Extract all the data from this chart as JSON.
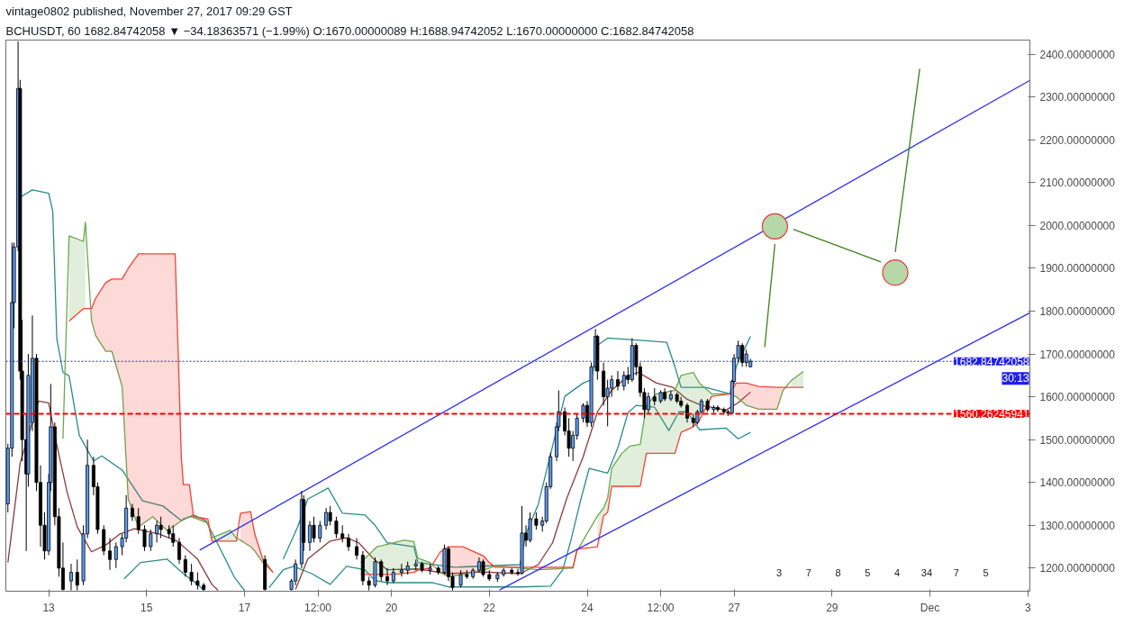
{
  "chart_data": {
    "type": "candlestick",
    "title": "vintage0802 published, November 27, 2017 09:29 GST",
    "subtitle": "BCHUSDT, 60  1682.84742058 ▼ −34.18363571 (−1.99%)  O:1670.00000089  H:1688.94742052  L:1670.00000000  C:1682.84742058",
    "xlim": [
      "2017-11-12T03:00",
      "2017-12-03T01:00"
    ],
    "ylim": [
      1146,
      2433
    ],
    "xticks": [
      {
        "value": "2017-11-13",
        "label": "13"
      },
      {
        "value": "2017-11-15",
        "label": "15"
      },
      {
        "value": "2017-11-17",
        "label": "17"
      },
      {
        "value": "2017-11-18T12:00",
        "label": "12:00"
      },
      {
        "value": "2017-11-20",
        "label": "20"
      },
      {
        "value": "2017-11-22",
        "label": "22"
      },
      {
        "value": "2017-11-24",
        "label": "24"
      },
      {
        "value": "2017-11-25T12:00",
        "label": "12:00"
      },
      {
        "value": "2017-11-27",
        "label": "27"
      },
      {
        "value": "2017-11-29",
        "label": "29"
      },
      {
        "value": "2017-12-01",
        "label": "Dec"
      },
      {
        "value": "2017-12-03",
        "label": "3"
      }
    ],
    "yticks": [
      {
        "value": 1200,
        "label": "1200.00000000"
      },
      {
        "value": 1300,
        "label": "1300.00000000"
      },
      {
        "value": 1400,
        "label": "1400.00000000"
      },
      {
        "value": 1500,
        "label": "1500.00000000"
      },
      {
        "value": 1600,
        "label": "1600.00000000"
      },
      {
        "value": 1700,
        "label": "1700.00000000"
      },
      {
        "value": 1800,
        "label": "1800.00000000"
      },
      {
        "value": 1900,
        "label": "1900.00000000"
      },
      {
        "value": 2000,
        "label": "2000.00000000"
      },
      {
        "value": 2100,
        "label": "2100.00000000"
      },
      {
        "value": 2200,
        "label": "2200.00000000"
      },
      {
        "value": 2300,
        "label": "2300.00000000"
      },
      {
        "value": 2400,
        "label": "2400.00000000"
      }
    ],
    "x": [
      "2017-11-12T04:00",
      "2017-11-12T06:00",
      "2017-11-12T07:00",
      "2017-11-12T09:00",
      "2017-11-12T10:00",
      "2017-11-12T11:00",
      "2017-11-12T13:00",
      "2017-11-12T14:00",
      "2017-11-12T16:00",
      "2017-11-12T18:00",
      "2017-11-12T20:00",
      "2017-11-12T22:00",
      "2017-11-13T00:00",
      "2017-11-13T01:00",
      "2017-11-13T03:00",
      "2017-11-13T05:00",
      "2017-11-13T07:00",
      "2017-11-13T11:00",
      "2017-11-13T14:00",
      "2017-11-13T17:00",
      "2017-11-13T19:00",
      "2017-11-13T22:00",
      "2017-11-14T00:00",
      "2017-11-14T03:00",
      "2017-11-14T06:00",
      "2017-11-14T09:00",
      "2017-11-14T12:00",
      "2017-11-14T14:00",
      "2017-11-14T17:00",
      "2017-11-14T20:00",
      "2017-11-14T23:00",
      "2017-11-15T02:00",
      "2017-11-15T05:00",
      "2017-11-15T07:00",
      "2017-11-15T11:00",
      "2017-11-15T13:00",
      "2017-11-15T16:00",
      "2017-11-15T19:00",
      "2017-11-15T22:00",
      "2017-11-16T01:00",
      "2017-11-16T04:00",
      "2017-11-17T10:00",
      "2017-11-17T23:00",
      "2017-11-18T01:00",
      "2017-11-18T04:00",
      "2017-11-18T05:00",
      "2017-11-18T08:00",
      "2017-11-18T10:00",
      "2017-11-18T13:00",
      "2017-11-18T16:00",
      "2017-11-18T18:00",
      "2017-11-18T21:00",
      "2017-11-19T00:00",
      "2017-11-19T03:00",
      "2017-11-19T07:00",
      "2017-11-19T10:00",
      "2017-11-19T13:00",
      "2017-11-19T16:00",
      "2017-11-19T19:00",
      "2017-11-19T22:00",
      "2017-11-20T01:00",
      "2017-11-20T05:00",
      "2017-11-20T08:00",
      "2017-11-20T12:00",
      "2017-11-20T15:00",
      "2017-11-20T19:00",
      "2017-11-20T23:00",
      "2017-11-21T02:00",
      "2017-11-21T04:00",
      "2017-11-21T06:00",
      "2017-11-21T10:00",
      "2017-11-21T13:00",
      "2017-11-21T16:00",
      "2017-11-21T19:00",
      "2017-11-21T21:00",
      "2017-11-22T00:00",
      "2017-11-22T04:00",
      "2017-11-22T07:00",
      "2017-11-22T11:00",
      "2017-11-22T14:00",
      "2017-11-22T16:00",
      "2017-11-22T18:00",
      "2017-11-22T20:00",
      "2017-11-22T23:00",
      "2017-11-23T02:00",
      "2017-11-23T04:00",
      "2017-11-23T06:00",
      "2017-11-23T09:00",
      "2017-11-23T10:00",
      "2017-11-23T13:00",
      "2017-11-23T15:00",
      "2017-11-23T17:00",
      "2017-11-23T19:00",
      "2017-11-23T22:00",
      "2017-11-24T00:00",
      "2017-11-24T02:00",
      "2017-11-24T04:00",
      "2017-11-24T05:00",
      "2017-11-24T08:00",
      "2017-11-24T10:00",
      "2017-11-24T12:00",
      "2017-11-24T15:00",
      "2017-11-24T18:00",
      "2017-11-24T20:00",
      "2017-11-24T22:00",
      "2017-11-25T00:00",
      "2017-11-25T02:00",
      "2017-11-25T04:00",
      "2017-11-25T06:00",
      "2017-11-25T09:00",
      "2017-11-25T12:00",
      "2017-11-25T14:00",
      "2017-11-25T17:00",
      "2017-11-25T20:00",
      "2017-11-25T22:00",
      "2017-11-26T01:00",
      "2017-11-26T04:00",
      "2017-11-26T06:00",
      "2017-11-26T08:00",
      "2017-11-26T11:00",
      "2017-11-26T14:00",
      "2017-11-26T16:00",
      "2017-11-26T19:00",
      "2017-11-26T21:00",
      "2017-11-26T23:00",
      "2017-11-27T00:00",
      "2017-11-27T02:00",
      "2017-11-27T04:00",
      "2017-11-27T06:00",
      "2017-11-27T08:00"
    ],
    "ohlc": [
      [
        1350,
        1490,
        1330,
        1480
      ],
      [
        1480,
        1960,
        1460,
        1820
      ],
      [
        1820,
        1960,
        1760,
        1950
      ],
      [
        1950,
        2430,
        1940,
        2320
      ],
      [
        2320,
        2340,
        1640,
        1660
      ],
      [
        1660,
        1780,
        1450,
        1500
      ],
      [
        1500,
        1560,
        1240,
        1420
      ],
      [
        1420,
        1700,
        1390,
        1650
      ],
      [
        1540,
        1790,
        1520,
        1690
      ],
      [
        1690,
        1700,
        1380,
        1400
      ],
      [
        1400,
        1440,
        1250,
        1300
      ],
      [
        1300,
        1330,
        1220,
        1240
      ],
      [
        1240,
        1420,
        1230,
        1400
      ],
      [
        1400,
        1630,
        1380,
        1530
      ],
      [
        1530,
        1540,
        1300,
        1320
      ],
      [
        1320,
        1340,
        1180,
        1200
      ],
      [
        1200,
        1260,
        1148,
        1150
      ],
      [
        1170,
        1210,
        1148,
        1190
      ],
      [
        1190,
        1220,
        1148,
        1160
      ],
      [
        1170,
        1300,
        1160,
        1280
      ],
      [
        1280,
        1500,
        1270,
        1440
      ],
      [
        1440,
        1460,
        1370,
        1390
      ],
      [
        1390,
        1400,
        1280,
        1290
      ],
      [
        1290,
        1300,
        1230,
        1240
      ],
      [
        1240,
        1270,
        1196,
        1220
      ],
      [
        1220,
        1260,
        1200,
        1250
      ],
      [
        1250,
        1280,
        1230,
        1270
      ],
      [
        1270,
        1370,
        1260,
        1340
      ],
      [
        1340,
        1350,
        1310,
        1320
      ],
      [
        1320,
        1340,
        1280,
        1290
      ],
      [
        1290,
        1300,
        1240,
        1250
      ],
      [
        1250,
        1290,
        1240,
        1280
      ],
      [
        1280,
        1310,
        1260,
        1300
      ],
      [
        1300,
        1320,
        1270,
        1290
      ],
      [
        1290,
        1300,
        1270,
        1280
      ],
      [
        1280,
        1300,
        1250,
        1260
      ],
      [
        1260,
        1270,
        1210,
        1220
      ],
      [
        1220,
        1230,
        1180,
        1190
      ],
      [
        1190,
        1210,
        1160,
        1170
      ],
      [
        1170,
        1190,
        1150,
        1160
      ],
      [
        1160,
        1165,
        1148,
        1150
      ],
      [
        1220,
        1230,
        1148,
        1150
      ],
      [
        1150,
        1175,
        1148,
        1170
      ],
      [
        1170,
        1220,
        1160,
        1210
      ],
      [
        1210,
        1380,
        1200,
        1360
      ],
      [
        1360,
        1370,
        1240,
        1260
      ],
      [
        1260,
        1310,
        1240,
        1300
      ],
      [
        1300,
        1320,
        1260,
        1270
      ],
      [
        1270,
        1310,
        1260,
        1300
      ],
      [
        1300,
        1340,
        1290,
        1330
      ],
      [
        1330,
        1345,
        1300,
        1310
      ],
      [
        1310,
        1320,
        1270,
        1280
      ],
      [
        1280,
        1300,
        1260,
        1270
      ],
      [
        1270,
        1280,
        1240,
        1250
      ],
      [
        1250,
        1270,
        1220,
        1230
      ],
      [
        1230,
        1240,
        1160,
        1170
      ],
      [
        1170,
        1180,
        1148,
        1160
      ],
      [
        1160,
        1225,
        1155,
        1215
      ],
      [
        1215,
        1220,
        1170,
        1180
      ],
      [
        1180,
        1200,
        1160,
        1170
      ],
      [
        1170,
        1200,
        1165,
        1190
      ],
      [
        1190,
        1210,
        1180,
        1195
      ],
      [
        1195,
        1215,
        1185,
        1205
      ],
      [
        1205,
        1220,
        1195,
        1210
      ],
      [
        1210,
        1215,
        1190,
        1195
      ],
      [
        1195,
        1210,
        1185,
        1200
      ],
      [
        1200,
        1205,
        1185,
        1190
      ],
      [
        1190,
        1255,
        1185,
        1245
      ],
      [
        1245,
        1250,
        1170,
        1180
      ],
      [
        1180,
        1190,
        1148,
        1155
      ],
      [
        1160,
        1195,
        1155,
        1185
      ],
      [
        1185,
        1195,
        1175,
        1180
      ],
      [
        1180,
        1200,
        1175,
        1195
      ],
      [
        1195,
        1225,
        1190,
        1215
      ],
      [
        1215,
        1220,
        1180,
        1185
      ],
      [
        1185,
        1195,
        1170,
        1175
      ],
      [
        1175,
        1190,
        1168,
        1185
      ],
      [
        1185,
        1200,
        1180,
        1195
      ],
      [
        1195,
        1200,
        1185,
        1190
      ],
      [
        1190,
        1198,
        1182,
        1188
      ],
      [
        1188,
        1345,
        1185,
        1282
      ],
      [
        1282,
        1300,
        1250,
        1265
      ],
      [
        1265,
        1330,
        1260,
        1315
      ],
      [
        1315,
        1330,
        1290,
        1300
      ],
      [
        1300,
        1320,
        1285,
        1310
      ],
      [
        1310,
        1400,
        1305,
        1390
      ],
      [
        1390,
        1470,
        1385,
        1460
      ],
      [
        1460,
        1540,
        1450,
        1530
      ],
      [
        1530,
        1615,
        1520,
        1565
      ],
      [
        1565,
        1575,
        1510,
        1520
      ],
      [
        1520,
        1550,
        1460,
        1480
      ],
      [
        1480,
        1520,
        1450,
        1510
      ],
      [
        1510,
        1560,
        1500,
        1550
      ],
      [
        1550,
        1585,
        1540,
        1580
      ],
      [
        1580,
        1590,
        1530,
        1540
      ],
      [
        1540,
        1680,
        1530,
        1670
      ],
      [
        1670,
        1758,
        1660,
        1741
      ],
      [
        1741,
        1745,
        1640,
        1660
      ],
      [
        1660,
        1680,
        1580,
        1600
      ],
      [
        1600,
        1640,
        1531,
        1620
      ],
      [
        1620,
        1650,
        1600,
        1640
      ],
      [
        1640,
        1660,
        1615,
        1625
      ],
      [
        1625,
        1660,
        1615,
        1650
      ],
      [
        1650,
        1670,
        1630,
        1640
      ],
      [
        1640,
        1737,
        1635,
        1720
      ],
      [
        1720,
        1725,
        1650,
        1670
      ],
      [
        1670,
        1680,
        1600,
        1610
      ],
      [
        1610,
        1620,
        1550,
        1570
      ],
      [
        1570,
        1610,
        1560,
        1600
      ],
      [
        1600,
        1620,
        1580,
        1590
      ],
      [
        1590,
        1615,
        1585,
        1610
      ],
      [
        1610,
        1620,
        1590,
        1595
      ],
      [
        1595,
        1615,
        1590,
        1605
      ],
      [
        1605,
        1610,
        1585,
        1590
      ],
      [
        1590,
        1600,
        1575,
        1580
      ],
      [
        1580,
        1585,
        1540,
        1550
      ],
      [
        1550,
        1560,
        1530,
        1540
      ],
      [
        1540,
        1570,
        1535,
        1565
      ],
      [
        1565,
        1595,
        1560,
        1590
      ],
      [
        1590,
        1595,
        1565,
        1570
      ],
      [
        1570,
        1580,
        1563,
        1575
      ],
      [
        1575,
        1580,
        1565,
        1570
      ],
      [
        1570,
        1575,
        1560,
        1565
      ],
      [
        1565,
        1570,
        1555,
        1562
      ],
      [
        1562,
        1640,
        1560,
        1636
      ],
      [
        1636,
        1700,
        1630,
        1690
      ],
      [
        1690,
        1731,
        1680,
        1720
      ],
      [
        1720,
        1725,
        1670,
        1680
      ],
      [
        1680,
        1710,
        1670,
        1700
      ],
      [
        1670,
        1689,
        1670,
        1683
      ]
    ],
    "colors": [
      "#5b9cf6",
      "#5b9cf6",
      "#5b9cf6",
      "#5b9cf6",
      "#000000",
      "#000000",
      "#000000",
      "#5b9cf6",
      "#5b9cf6",
      "#000000",
      "#000000",
      "#000000",
      "#5b9cf6",
      "#5b9cf6",
      "#000000",
      "#000000",
      "#000000",
      "#5b9cf6",
      "#000000",
      "#5b9cf6",
      "#5b9cf6",
      "#000000",
      "#000000",
      "#000000",
      "#000000",
      "#5b9cf6",
      "#5b9cf6",
      "#5b9cf6",
      "#000000",
      "#000000",
      "#000000",
      "#5b9cf6",
      "#5b9cf6",
      "#000000",
      "#000000",
      "#000000",
      "#000000",
      "#000000",
      "#000000",
      "#000000",
      "#000000",
      "#000000",
      "#5b9cf6",
      "#5b9cf6",
      "#5b9cf6",
      "#000000",
      "#5b9cf6",
      "#000000",
      "#5b9cf6",
      "#5b9cf6",
      "#000000",
      "#000000",
      "#000000",
      "#000000",
      "#000000",
      "#000000",
      "#000000",
      "#5b9cf6",
      "#000000",
      "#000000",
      "#5b9cf6",
      "#5b9cf6",
      "#5b9cf6",
      "#5b9cf6",
      "#000000",
      "#5b9cf6",
      "#000000",
      "#5b9cf6",
      "#000000",
      "#000000",
      "#5b9cf6",
      "#000000",
      "#5b9cf6",
      "#5b9cf6",
      "#000000",
      "#000000",
      "#5b9cf6",
      "#5b9cf6",
      "#000000",
      "#000000",
      "#5b9cf6",
      "#000000",
      "#5b9cf6",
      "#000000",
      "#5b9cf6",
      "#5b9cf6",
      "#5b9cf6",
      "#5b9cf6",
      "#5b9cf6",
      "#000000",
      "#000000",
      "#5b9cf6",
      "#5b9cf6",
      "#5b9cf6",
      "#000000",
      "#5b9cf6",
      "#5b9cf6",
      "#000000",
      "#000000",
      "#5b9cf6",
      "#5b9cf6",
      "#000000",
      "#5b9cf6",
      "#000000",
      "#5b9cf6",
      "#000000",
      "#000000",
      "#000000",
      "#5b9cf6",
      "#000000",
      "#5b9cf6",
      "#000000",
      "#5b9cf6",
      "#000000",
      "#000000",
      "#000000",
      "#000000",
      "#5b9cf6",
      "#5b9cf6",
      "#000000",
      "#5b9cf6",
      "#000000",
      "#000000",
      "#000000",
      "#5b9cf6",
      "#5b9cf6",
      "#5b9cf6",
      "#000000",
      "#5b9cf6",
      "#5b9cf6"
    ],
    "series": [
      {
        "type": "line",
        "color": "#2b8a8c",
        "x": [
          "2017-11-12T10:00",
          "2017-11-12T16:00",
          "2017-11-13T00:00",
          "2017-11-13T02:00",
          "2017-11-13T04:00",
          "2017-11-13T07:00",
          "2017-11-13T10:00",
          "2017-11-13T15:00",
          "2017-11-13T22:00",
          "2017-11-14T02:00",
          "2017-11-14T12:00",
          "2017-11-14T22:00",
          "2017-11-15T08:00",
          "2017-11-15T17:00",
          "2017-11-15T23:00",
          "2017-11-16T05:00",
          "2017-11-16T12:00",
          "2017-11-16T19:00",
          "2017-11-17T00:00",
          "2017-11-17T10:00",
          "2017-11-17T19:00",
          "2017-11-18T02:00",
          "2017-11-18T07:00",
          "2017-11-18T17:00",
          "2017-11-19T00:00",
          "2017-11-19T11:00",
          "2017-11-19T16:00",
          "2017-11-19T22:00",
          "2017-11-20T11:00",
          "2017-11-20T13:00",
          "2017-11-21T07:00",
          "2017-11-22T15:00",
          "2017-11-22T18:00",
          "2017-11-23T00:00",
          "2017-11-23T13:00",
          "2017-11-23T22:00",
          "2017-11-24T02:00",
          "2017-11-24T05:00",
          "2017-11-24T10:00",
          "2017-11-25T05:00",
          "2017-11-25T15:00",
          "2017-11-25T19:00",
          "2017-11-25T22:00",
          "2017-11-26T10:00",
          "2017-11-26T22:00",
          "2017-11-27T01:00",
          "2017-11-27T08:00"
        ],
        "values": [
          2066,
          2083,
          2075,
          2033,
          1735,
          1657,
          1649,
          1510,
          1450,
          1462,
          1429,
          1357,
          1345,
          1311,
          1324,
          1311,
          1246,
          1179,
          1148,
          null,
          1221,
          1296,
          1361,
          1387,
          1328,
          1324,
          1300,
          1259,
          1250,
          1213,
          1202,
          1208,
          1280,
          1349,
          1601,
          1632,
          1640,
          1720,
          1737,
          1731,
          1727,
          1670,
          1622,
          1622,
          1607,
          1670,
          1741
        ]
      },
      {
        "type": "line",
        "color": "#2b8a8c",
        "x": [
          "2017-11-14T13:00",
          "2017-11-14T21:00",
          "2017-11-15T10:00",
          "2017-11-15T18:00",
          "2017-11-16T01:00",
          "2017-11-16T04:00",
          "2017-11-17T00:00",
          "2017-11-17T12:00",
          "2017-11-17T19:00",
          "2017-11-18T00:00",
          "2017-11-18T09:00",
          "2017-11-18T18:00",
          "2017-11-19T02:00",
          "2017-11-19T11:00",
          "2017-11-19T16:00",
          "2017-11-19T22:00",
          "2017-11-20T20:00",
          "2017-11-21T04:00",
          "2017-11-22T15:00",
          "2017-11-23T06:00",
          "2017-11-23T12:00",
          "2017-11-23T16:00",
          "2017-11-23T21:00",
          "2017-11-24T01:00",
          "2017-11-24T10:00",
          "2017-11-24T15:00",
          "2017-11-24T20:00",
          "2017-11-25T00:00",
          "2017-11-25T09:00",
          "2017-11-25T16:00",
          "2017-11-25T21:00",
          "2017-11-26T01:00",
          "2017-11-26T07:00",
          "2017-11-26T20:00",
          "2017-11-27T02:00",
          "2017-11-27T08:00"
        ],
        "values": [
          1175,
          1213,
          1221,
          1187,
          1162,
          1148,
          null,
          1154,
          1196,
          1204,
          1187,
          1162,
          1204,
          1196,
          1171,
          1166,
          1166,
          1156,
          1156,
          1158,
          1196,
          1265,
          1363,
          1433,
          1422,
          1481,
          1563,
          1580,
          1576,
          1521,
          1565,
          1565,
          1523,
          1527,
          1502,
          1517
        ]
      },
      {
        "type": "line",
        "color": "#8b3a3a",
        "x": [
          "2017-11-12T04:00",
          "2017-11-12T10:00",
          "2017-11-12T19:00",
          "2017-11-13T00:00",
          "2017-11-13T04:00",
          "2017-11-13T09:00",
          "2017-11-13T14:00",
          "2017-11-13T21:00",
          "2017-11-14T04:00",
          "2017-11-14T11:00",
          "2017-11-14T18:00",
          "2017-11-15T06:00",
          "2017-11-15T15:00",
          "2017-11-16T01:00",
          "2017-11-16T08:00",
          "2017-11-16T11:00",
          "2017-11-17T06:00",
          "2017-11-18T01:00",
          "2017-11-18T07:00",
          "2017-11-18T18:00",
          "2017-11-19T02:00",
          "2017-11-19T08:00",
          "2017-11-19T15:00",
          "2017-11-19T22:00",
          "2017-11-20T13:00",
          "2017-11-21T04:00",
          "2017-11-21T21:00",
          "2017-11-22T15:00",
          "2017-11-23T00:00",
          "2017-11-23T07:00",
          "2017-11-23T14:00",
          "2017-11-23T22:00",
          "2017-11-24T05:00",
          "2017-11-24T12:00",
          "2017-11-24T20:00",
          "2017-11-25T01:00",
          "2017-11-25T10:00",
          "2017-11-25T18:00",
          "2017-11-26T01:00",
          "2017-11-26T08:00",
          "2017-11-26T20:00",
          "2017-11-27T02:00",
          "2017-11-27T08:00"
        ],
        "values": [
          1213,
          1445,
          1590,
          1586,
          1487,
          1378,
          1296,
          1238,
          1254,
          1280,
          1292,
          1280,
          1263,
          1221,
          1162,
          1148,
          null,
          1150,
          1221,
          1263,
          1271,
          1259,
          1223,
          1196,
          1198,
          1187,
          1191,
          1187,
          1208,
          1259,
          1363,
          1460,
          1565,
          1615,
          1649,
          1657,
          1632,
          1622,
          1594,
          1580,
          1569,
          1586,
          1611
        ]
      },
      {
        "type": "line",
        "color": "#6aa84f",
        "x": [
          "2017-11-13T07:00",
          "2017-11-13T10:00",
          "2017-11-13T17:00",
          "2017-11-13T18:00",
          "2017-11-13T21:00",
          "2017-11-13T23:00",
          "2017-11-14T04:00",
          "2017-11-14T07:00",
          "2017-11-14T12:00",
          "2017-11-14T15:00",
          "2017-11-14T20:00",
          "2017-11-15T03:00",
          "2017-11-15T10:00",
          "2017-11-15T14:00",
          "2017-11-15T17:00",
          "2017-11-15T18:00",
          "2017-11-15T21:00",
          "2017-11-15T23:00",
          "2017-11-16T06:00",
          "2017-11-16T08:00",
          "2017-11-16T17:00",
          "2017-11-16T20:00",
          "2017-11-16T22:00",
          "2017-11-17T03:00",
          "2017-11-17T05:00",
          "2017-11-17T09:00",
          "2017-11-17T14:00",
          "2017-11-17T20:00",
          "2017-11-19T09:00",
          "2017-11-19T17:00",
          "2017-11-20T01:00",
          "2017-11-20T06:00",
          "2017-11-20T11:00",
          "2017-11-20T13:00",
          "2017-11-20T19:00",
          "2017-11-21T00:00",
          "2017-11-21T04:00",
          "2017-11-21T11:00",
          "2017-11-21T21:00",
          "2017-11-22T00:00",
          "2017-11-22T03:00",
          "2017-11-23T00:00",
          "2017-11-23T17:00",
          "2017-11-23T19:00",
          "2017-11-24T05:00",
          "2017-11-24T08:00",
          "2017-11-24T10:00",
          "2017-11-24T12:00",
          "2017-11-24T17:00",
          "2017-11-24T21:00",
          "2017-11-25T02:00",
          "2017-11-25T05:00",
          "2017-11-25T10:00",
          "2017-11-25T19:00",
          "2017-11-25T22:00",
          "2017-11-26T04:00",
          "2017-11-26T07:00",
          "2017-11-26T13:00",
          "2017-11-26T22:00",
          "2017-11-27T01:00",
          "2017-11-27T06:00",
          "2017-11-27T12:00",
          "2017-11-27T21:00",
          "2017-11-28T00:00",
          "2017-11-28T04:00",
          "2017-11-28T10:00"
        ],
        "values": [
          1502,
          1976,
          1963,
          2008,
          1777,
          1743,
          1706,
          1706,
          1624,
          1361,
          1296,
          1320,
          1288,
          1300,
          1310,
          1315,
          1320,
          1318,
          1305,
          1271,
          1288,
          1270,
          1265,
          1250,
          1240,
          1213,
          1190,
          null,
          1213,
          1250,
          1259,
          1265,
          1262,
          1223,
          1213,
          1190,
          1180,
          1185,
          1195,
          1200,
          1205,
          1196,
          1200,
          1240,
          1322,
          1340,
          1363,
          1433,
          1468,
          1485,
          1489,
          1580,
          1607,
          1615,
          1650,
          1657,
          1632,
          1607,
          1607,
          1600,
          1580,
          1571,
          1571,
          1615,
          1638,
          1659
        ],
        "lower": [
          null,
          1777,
          1806,
          1806,
          null,
          null,
          null,
          null,
          null,
          null,
          null,
          null,
          null,
          null,
          null,
          null,
          null,
          null,
          null,
          1263,
          1263,
          1263,
          null,
          null,
          null,
          null,
          null,
          null,
          1185,
          1185,
          1185,
          1188,
          1190,
          1195,
          1200,
          null,
          null,
          null,
          null,
          null,
          null,
          null,
          null,
          null,
          1250,
          1322,
          1330,
          1391,
          1391,
          1391,
          1391,
          1468,
          1468,
          1468,
          1517,
          1530,
          1545,
          1601,
          1607,
          null,
          null,
          null,
          null,
          null,
          1622,
          1622
        ],
        "upper": [
          null,
          1976,
          1963,
          2008,
          null,
          null,
          null,
          null,
          null,
          null,
          null,
          null,
          null,
          null,
          null,
          null,
          null,
          null,
          null,
          1271,
          1288,
          1270,
          null,
          null,
          null,
          null,
          null,
          null,
          1213,
          1250,
          1259,
          1265,
          1262,
          1223,
          1213,
          null,
          null,
          null,
          null,
          null,
          null,
          null,
          null,
          null,
          1322,
          1340,
          1363,
          1433,
          1468,
          1485,
          1489,
          1580,
          1607,
          1615,
          1650,
          1657,
          1632,
          1607,
          1607,
          null,
          null,
          null,
          null,
          null,
          1638,
          1659
        ]
      },
      {
        "type": "line",
        "color": "#f44336",
        "x": [
          "2017-11-13T10:00",
          "2017-11-13T17:00",
          "2017-11-13T18:00",
          "2017-11-13T21:00",
          "2017-11-13T23:00",
          "2017-11-14T04:00",
          "2017-11-14T07:00",
          "2017-11-14T12:00",
          "2017-11-14T15:00",
          "2017-11-14T20:00",
          "2017-11-15T03:00",
          "2017-11-15T10:00",
          "2017-11-15T14:00",
          "2017-11-15T17:00",
          "2017-11-15T18:00",
          "2017-11-15T21:00",
          "2017-11-15T23:00",
          "2017-11-16T06:00",
          "2017-11-16T08:00",
          "2017-11-16T17:00",
          "2017-11-16T20:00",
          "2017-11-16T22:00",
          "2017-11-17T03:00",
          "2017-11-17T05:00",
          "2017-11-17T09:00",
          "2017-11-17T14:00",
          "2017-11-17T20:00",
          "2017-11-19T09:00",
          "2017-11-19T17:00",
          "2017-11-20T01:00",
          "2017-11-20T06:00",
          "2017-11-20T11:00",
          "2017-11-20T13:00",
          "2017-11-20T19:00",
          "2017-11-21T00:00",
          "2017-11-21T04:00",
          "2017-11-21T11:00",
          "2017-11-21T21:00",
          "2017-11-22T00:00",
          "2017-11-22T03:00",
          "2017-11-23T00:00",
          "2017-11-23T17:00",
          "2017-11-23T19:00",
          "2017-11-24T05:00",
          "2017-11-24T08:00",
          "2017-11-24T10:00",
          "2017-11-24T12:00",
          "2017-11-24T17:00",
          "2017-11-24T21:00",
          "2017-11-25T02:00",
          "2017-11-25T05:00",
          "2017-11-25T10:00",
          "2017-11-25T19:00",
          "2017-11-25T22:00",
          "2017-11-26T04:00",
          "2017-11-26T07:00",
          "2017-11-26T13:00",
          "2017-11-26T22:00",
          "2017-11-27T01:00",
          "2017-11-27T06:00",
          "2017-11-27T12:00",
          "2017-11-27T21:00",
          "2017-11-28T00:00",
          "2017-11-28T04:00",
          "2017-11-28T10:00"
        ],
        "values": [
          1777,
          1806,
          1806,
          1806,
          1830,
          1867,
          1875,
          1875,
          1900,
          1934,
          1934,
          1934,
          1934,
          1462,
          1395,
          1395,
          1320,
          1315,
          1263,
          1263,
          1263,
          1328,
          1332,
          1280,
          1221,
          1190,
          null,
          1185,
          1185,
          1185,
          1188,
          1190,
          1195,
          1200,
          1238,
          1250,
          1250,
          1229,
          1213,
          1202,
          1202,
          1202,
          1244,
          1250,
          1322,
          1330,
          1391,
          1391,
          1391,
          1391,
          1468,
          1468,
          1468,
          1517,
          1530,
          1545,
          1601,
          1607,
          1632,
          1632,
          1624,
          1622,
          1622,
          1622,
          1622
        ],
        "lower": [
          null,
          null,
          null,
          1777,
          1743,
          1706,
          1706,
          1624,
          1361,
          1296,
          1320,
          1288,
          1300,
          1310,
          1315,
          1320,
          1318,
          1305,
          null,
          null,
          null,
          1265,
          1250,
          1240,
          1213,
          1190,
          null,
          null,
          null,
          null,
          null,
          null,
          null,
          null,
          1190,
          1180,
          1185,
          1195,
          1200,
          null,
          1196,
          1200,
          1240,
          null,
          null,
          null,
          null,
          null,
          null,
          null,
          null,
          null,
          null,
          null,
          null,
          null,
          null,
          1607,
          1600,
          1580,
          1571,
          1571,
          1615,
          null,
          null
        ],
        "upper": [
          null,
          null,
          null,
          1806,
          1830,
          1867,
          1875,
          1875,
          1900,
          1934,
          1934,
          1934,
          1934,
          1462,
          1395,
          1395,
          1320,
          1315,
          null,
          null,
          null,
          1328,
          1332,
          1280,
          1221,
          1190,
          null,
          null,
          null,
          null,
          null,
          null,
          null,
          null,
          1238,
          1250,
          1250,
          1229,
          1213,
          null,
          1202,
          1202,
          1244,
          null,
          null,
          null,
          null,
          null,
          null,
          null,
          null,
          null,
          null,
          null,
          null,
          null,
          null,
          1607,
          1632,
          1632,
          1624,
          1622,
          1622,
          null,
          null
        ]
      },
      {
        "type": "line",
        "color": "#2f2ff3",
        "x": [
          "2017-11-16T02:00",
          "2017-12-03T01:00"
        ],
        "values": [
          1242,
          2339
        ]
      },
      {
        "type": "line",
        "color": "#2f2ff3",
        "x": [
          "2017-11-22T05:00",
          "2017-12-03T01:00"
        ],
        "values": [
          1149,
          1796
        ]
      },
      {
        "type": "line",
        "color": "#3f7f1f",
        "x": [
          "2017-11-27T15:00",
          "2017-11-27T20:00"
        ],
        "values": [
          1716,
          1957
        ]
      },
      {
        "type": "line",
        "color": "#3f7f1f",
        "x": [
          "2017-11-28T05:00",
          "2017-11-30T00:00"
        ],
        "values": [
          1991,
          1915
        ]
      },
      {
        "type": "line",
        "color": "#3f7f1f",
        "x": [
          "2017-11-30T07:00",
          "2017-11-30T19:00"
        ],
        "values": [
          1938,
          2366
        ]
      },
      {
        "type": "scatter",
        "color": "#b6d7a8",
        "marker": "circle",
        "x": [
          "2017-11-27T20:00",
          "2017-11-30T07:00"
        ],
        "values": [
          1998,
          1890
        ]
      }
    ],
    "ref_lines": [
      {
        "axis": "y",
        "value": 1682.84742058,
        "label": "1682.84742058",
        "color": "#1e1ef0",
        "line_style": "dotted"
      },
      {
        "axis": "y",
        "value": 1560.26245941,
        "label": "1560.26245941",
        "color": "#ff0000",
        "line_style": "dashed"
      }
    ],
    "annotations": [
      "30:13",
      "3",
      "7",
      "8",
      "5",
      "4",
      "34",
      "7",
      "5"
    ]
  }
}
